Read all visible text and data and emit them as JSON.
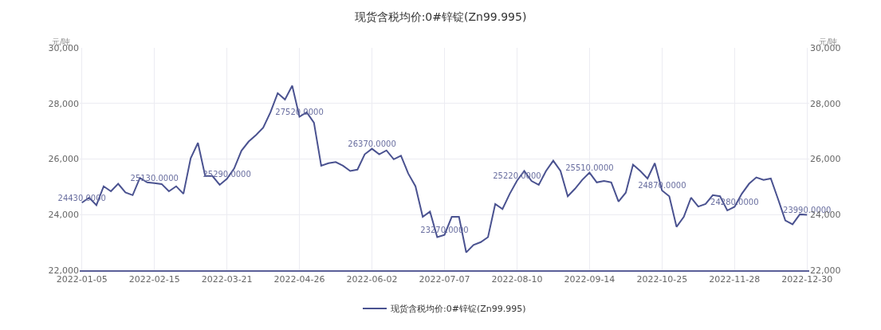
{
  "chart_data": {
    "type": "line",
    "title": "现货含税均价:0#锌锭(Zn99.995)",
    "ylabel": "元/吨",
    "y2label": "元/吨",
    "categories": [
      "2022-01-05",
      null,
      null,
      null,
      null,
      null,
      null,
      null,
      null,
      null,
      "2022-02-15",
      null,
      null,
      null,
      null,
      null,
      null,
      null,
      null,
      null,
      "2022-03-21",
      null,
      null,
      null,
      null,
      null,
      null,
      null,
      null,
      null,
      "2022-04-26",
      null,
      null,
      null,
      null,
      null,
      null,
      null,
      null,
      null,
      "2022-06-02",
      null,
      null,
      null,
      null,
      null,
      null,
      null,
      null,
      null,
      "2022-07-07",
      null,
      null,
      null,
      null,
      null,
      null,
      null,
      null,
      null,
      "2022-08-10",
      null,
      null,
      null,
      null,
      null,
      null,
      null,
      null,
      null,
      "2022-09-14",
      null,
      null,
      null,
      null,
      null,
      null,
      null,
      null,
      null,
      "2022-10-25",
      null,
      null,
      null,
      null,
      null,
      null,
      null,
      null,
      null,
      "2022-11-28",
      null,
      null,
      null,
      null,
      null,
      null,
      null,
      null,
      null,
      "2022-12-30"
    ],
    "series": [
      {
        "name": "现货含税均价:0#锌锭(Zn99.995)",
        "color": "#4a5290",
        "values": [
          24430,
          24610,
          24340,
          25020,
          24840,
          25110,
          24800,
          24700,
          25320,
          25160,
          25130,
          25100,
          24840,
          25020,
          24750,
          26030,
          26580,
          25390,
          25390,
          25070,
          25290,
          25660,
          26300,
          26630,
          26860,
          27130,
          27680,
          28370,
          28140,
          28640,
          27520,
          27680,
          27310,
          25760,
          25850,
          25890,
          25760,
          25570,
          25620,
          26170,
          26370,
          26170,
          26310,
          25990,
          26120,
          25480,
          25020,
          23920,
          24110,
          23190,
          23270,
          23920,
          23920,
          22640,
          22910,
          23010,
          23190,
          24380,
          24200,
          24750,
          25220,
          25570,
          25210,
          25070,
          25570,
          25940,
          25570,
          24660,
          24930,
          25250,
          25510,
          25160,
          25210,
          25160,
          24470,
          24790,
          25800,
          25570,
          25300,
          25850,
          24870,
          24660,
          23560,
          23920,
          24610,
          24290,
          24380,
          24700,
          24660,
          24150,
          24280,
          24750,
          25110,
          25340,
          25250,
          25300,
          24560,
          23790,
          23650,
          24010,
          23990
        ],
        "value_labels": [
          "24430.0000",
          null,
          null,
          null,
          null,
          null,
          null,
          null,
          null,
          null,
          "25130.0000",
          null,
          null,
          null,
          null,
          null,
          null,
          null,
          null,
          null,
          "25290.0000",
          null,
          null,
          null,
          null,
          null,
          null,
          null,
          null,
          null,
          "27520.0000",
          null,
          null,
          null,
          null,
          null,
          null,
          null,
          null,
          null,
          "26370.0000",
          null,
          null,
          null,
          null,
          null,
          null,
          null,
          null,
          null,
          "23270.0000",
          null,
          null,
          null,
          null,
          null,
          null,
          null,
          null,
          null,
          "25220.0000",
          null,
          null,
          null,
          null,
          null,
          null,
          null,
          null,
          null,
          "25510.0000",
          null,
          null,
          null,
          null,
          null,
          null,
          null,
          null,
          null,
          "24870.0000",
          null,
          null,
          null,
          null,
          null,
          null,
          null,
          null,
          null,
          "24280.0000",
          null,
          null,
          null,
          null,
          null,
          null,
          null,
          null,
          null,
          "23990.0000"
        ]
      }
    ],
    "ylim": [
      22000,
      30000
    ],
    "yticks": [
      {
        "value": 22000,
        "label": "22,000"
      },
      {
        "value": 24000,
        "label": "24,000"
      },
      {
        "value": 26000,
        "label": "26,000"
      },
      {
        "value": 28000,
        "label": "28,000"
      },
      {
        "value": 30000,
        "label": "30,000"
      }
    ],
    "y2lim": [
      22000,
      30000
    ],
    "y2ticks": [
      {
        "value": 22000,
        "label": "22,000"
      },
      {
        "value": 24000,
        "label": "24,000"
      },
      {
        "value": 26000,
        "label": "26,000"
      },
      {
        "value": 28000,
        "label": "28,000"
      },
      {
        "value": 30000,
        "label": "30,000"
      }
    ],
    "grid": true,
    "legend": "bottom",
    "marker": "none",
    "line_style": "solid"
  }
}
